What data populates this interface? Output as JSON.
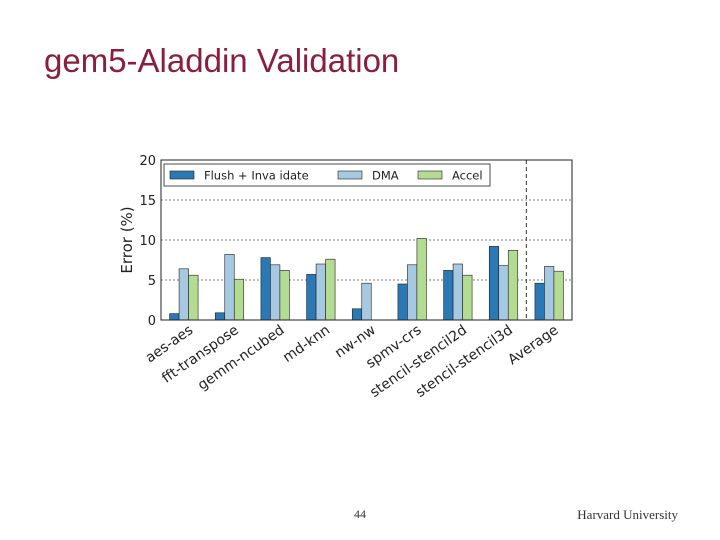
{
  "slide": {
    "title": "gem5-Aladdin Validation",
    "page_number": "44",
    "footer": "Harvard University"
  },
  "colors": {
    "title": "#8b1e3f",
    "flush": "#2a78b4",
    "dma": "#a6c8e0",
    "accel": "#b3dc92"
  },
  "chart_data": {
    "type": "bar",
    "ylabel": "Error (%)",
    "ylim": [
      0,
      20
    ],
    "yticks": [
      0,
      5,
      10,
      15,
      20
    ],
    "grid": "horizontal dashed",
    "legend_position": "top",
    "categories": [
      "aes-aes",
      "fft-transpose",
      "gemm-ncubed",
      "md-knn",
      "nw-nw",
      "spmv-crs",
      "stencil-stencil2d",
      "stencil-stencil3d",
      "Average"
    ],
    "separator_before": "Average",
    "series": [
      {
        "name": "Flush + Inva idate",
        "color": "#2a78b4",
        "values": [
          0.8,
          0.9,
          7.8,
          5.7,
          1.4,
          4.5,
          6.2,
          9.2,
          4.6
        ]
      },
      {
        "name": "DMA",
        "color": "#a6c8e0",
        "values": [
          6.4,
          8.2,
          6.9,
          7.0,
          4.6,
          6.9,
          7.0,
          6.8,
          6.7
        ]
      },
      {
        "name": "Accel",
        "color": "#b3dc92",
        "values": [
          5.6,
          5.1,
          6.2,
          7.6,
          null,
          10.2,
          5.6,
          8.7,
          6.1
        ]
      }
    ]
  }
}
